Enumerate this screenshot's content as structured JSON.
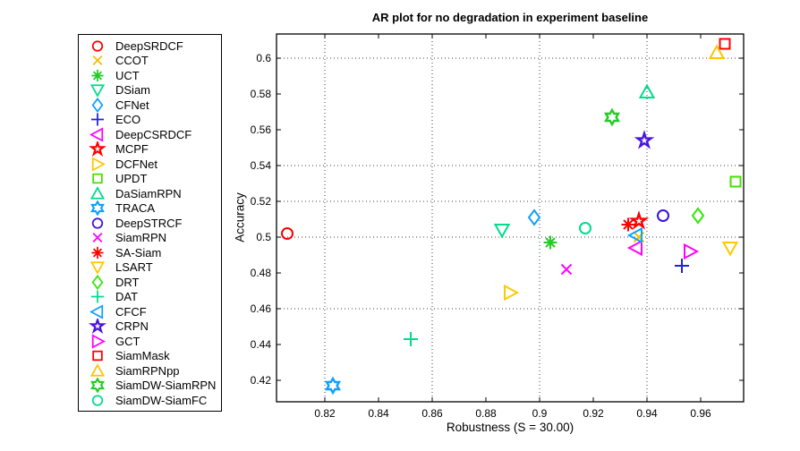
{
  "chart_data": {
    "type": "scatter",
    "title": "AR plot for no degradation in experiment baseline",
    "xlabel": "Robustness (S = 30.00)",
    "ylabel": "Accuracy",
    "xlim": [
      0.802,
      0.976
    ],
    "ylim": [
      0.408,
      0.6135
    ],
    "x_ticks": [
      {
        "v": 0.82,
        "label": "0.82"
      },
      {
        "v": 0.84,
        "label": "0.84"
      },
      {
        "v": 0.86,
        "label": "0.86"
      },
      {
        "v": 0.88,
        "label": "0.88"
      },
      {
        "v": 0.9,
        "label": "0.9"
      },
      {
        "v": 0.92,
        "label": "0.92"
      },
      {
        "v": 0.94,
        "label": "0.94"
      },
      {
        "v": 0.96,
        "label": "0.96"
      }
    ],
    "y_ticks": [
      {
        "v": 0.42,
        "label": "0.42"
      },
      {
        "v": 0.44,
        "label": "0.44"
      },
      {
        "v": 0.46,
        "label": "0.46"
      },
      {
        "v": 0.48,
        "label": "0.48"
      },
      {
        "v": 0.5,
        "label": "0.5"
      },
      {
        "v": 0.52,
        "label": "0.52"
      },
      {
        "v": 0.54,
        "label": "0.54"
      },
      {
        "v": 0.56,
        "label": "0.56"
      },
      {
        "v": 0.58,
        "label": "0.58"
      },
      {
        "v": 0.6,
        "label": "0.6"
      }
    ],
    "grid_x": [
      0.82,
      0.86,
      0.9,
      0.94
    ],
    "grid_y": [
      0.46,
      0.5,
      0.52,
      0.54,
      0.6
    ],
    "grid_style": "dotted",
    "legend_position": "outside-left",
    "series": [
      {
        "name": "DeepSRDCF",
        "marker": "circle",
        "color": "#FF0000",
        "x": 0.806,
        "y": 0.502
      },
      {
        "name": "CCOT",
        "marker": "x",
        "color": "#F0C000",
        "x": 0.937,
        "y": 0.5
      },
      {
        "name": "UCT",
        "marker": "asterisk",
        "color": "#22CC22",
        "x": 0.904,
        "y": 0.497
      },
      {
        "name": "DSiam",
        "marker": "triangle-down",
        "color": "#00DC8C",
        "x": 0.886,
        "y": 0.504
      },
      {
        "name": "CFNet",
        "marker": "diamond",
        "color": "#0FA0FF",
        "x": 0.898,
        "y": 0.511
      },
      {
        "name": "ECO",
        "marker": "plus",
        "color": "#2222DD",
        "x": 0.953,
        "y": 0.484
      },
      {
        "name": "DeepCSRDCF",
        "marker": "triangle-left",
        "color": "#FF00FF",
        "x": 0.936,
        "y": 0.494
      },
      {
        "name": "MCPF",
        "marker": "pentagram",
        "color": "#FF0000",
        "x": 0.937,
        "y": 0.509
      },
      {
        "name": "DCFNet",
        "marker": "triangle-right",
        "color": "#FFC800",
        "x": 0.889,
        "y": 0.469
      },
      {
        "name": "UPDT",
        "marker": "square",
        "color": "#44E100",
        "x": 0.973,
        "y": 0.531
      },
      {
        "name": "DaSiamRPN",
        "marker": "triangle-up",
        "color": "#00DC8C",
        "x": 0.94,
        "y": 0.581
      },
      {
        "name": "TRACA",
        "marker": "hexagram",
        "color": "#0FA0FF",
        "x": 0.823,
        "y": 0.417
      },
      {
        "name": "DeepSTRCF",
        "marker": "circle",
        "color": "#3C14DC",
        "x": 0.946,
        "y": 0.512
      },
      {
        "name": "SiamRPN",
        "marker": "x",
        "color": "#FF00FF",
        "x": 0.91,
        "y": 0.482
      },
      {
        "name": "SA-Siam",
        "marker": "asterisk",
        "color": "#FF0000",
        "x": 0.933,
        "y": 0.507
      },
      {
        "name": "LSART",
        "marker": "triangle-down",
        "color": "#FFC800",
        "x": 0.971,
        "y": 0.494
      },
      {
        "name": "DRT",
        "marker": "diamond",
        "color": "#33E60A",
        "x": 0.959,
        "y": 0.512
      },
      {
        "name": "DAT",
        "marker": "plus",
        "color": "#00DC8C",
        "x": 0.852,
        "y": 0.443
      },
      {
        "name": "CFCF",
        "marker": "triangle-left",
        "color": "#0FA0FF",
        "x": 0.936,
        "y": 0.501
      },
      {
        "name": "CRPN",
        "marker": "pentagram",
        "color": "#4814DC",
        "x": 0.939,
        "y": 0.554
      },
      {
        "name": "GCT",
        "marker": "triangle-right",
        "color": "#FF00FF",
        "x": 0.956,
        "y": 0.492
      },
      {
        "name": "SiamMask",
        "marker": "square",
        "color": "#FF0000",
        "x": 0.969,
        "y": 0.608
      },
      {
        "name": "SiamRPNpp",
        "marker": "triangle-up",
        "color": "#FFC300",
        "x": 0.966,
        "y": 0.603
      },
      {
        "name": "SiamDW-SiamRPN",
        "marker": "hexagram",
        "color": "#22CC22",
        "x": 0.927,
        "y": 0.567
      },
      {
        "name": "SiamDW-SiamFC",
        "marker": "circle",
        "color": "#00DC8C",
        "x": 0.917,
        "y": 0.505
      }
    ]
  }
}
